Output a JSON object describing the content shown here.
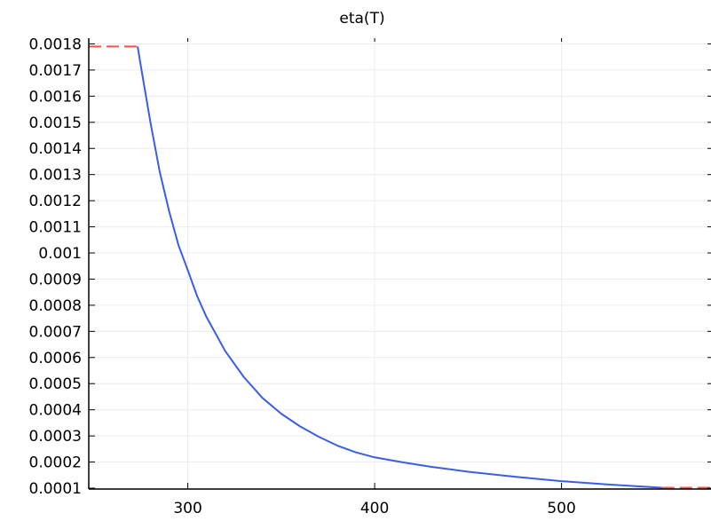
{
  "chart_data": {
    "type": "line",
    "title": "eta(T)",
    "xlabel": "",
    "ylabel": "",
    "xlim": [
      247,
      580
    ],
    "ylim": [
      9.67e-05,
      0.0018219
    ],
    "grid": true,
    "legend": "none",
    "x_ticks": [
      300,
      400,
      500
    ],
    "x_tick_labels": [
      "300",
      "400",
      "500"
    ],
    "y_ticks": [
      0.0001,
      0.0002,
      0.0003,
      0.0004,
      0.0005,
      0.0006,
      0.0007,
      0.0008,
      0.0009,
      0.001,
      0.0011,
      0.0012,
      0.0013,
      0.0014,
      0.0015,
      0.0016,
      0.0017,
      0.0018
    ],
    "y_tick_labels": [
      "0.0001",
      "0.0002",
      "0.0003",
      "0.0004",
      "0.0005",
      "0.0006",
      "0.0007",
      "0.0008",
      "0.0009",
      "0.001",
      "0.0011",
      "0.0012",
      "0.0013",
      "0.0014",
      "0.0015",
      "0.0016",
      "0.0017",
      "0.0018"
    ],
    "series": [
      {
        "color": "#3a5ee6",
        "style": "solid",
        "x": [
          273.15,
          275,
          280,
          285,
          290,
          295,
          300,
          305,
          310,
          320,
          330,
          340,
          350,
          360,
          370,
          380,
          390,
          400,
          415,
          430,
          450,
          475,
          500,
          525,
          553.75
        ],
        "y": [
          0.00179,
          0.00171,
          0.0015,
          0.00131,
          0.00116,
          0.00103,
          0.000934,
          0.000835,
          0.000755,
          0.000625,
          0.000525,
          0.000445,
          0.000385,
          0.000337,
          0.000297,
          0.000263,
          0.000237,
          0.000218,
          0.000199,
          0.000182,
          0.000163,
          0.000144,
          0.000127,
          0.000114,
          0.000102
        ]
      },
      {
        "color": "#ff4f4f",
        "style": "dashed",
        "x": [
          247,
          273.15
        ],
        "y": [
          0.00179,
          0.00179
        ]
      },
      {
        "color": "#ff4f4f",
        "style": "dashed",
        "x": [
          553.75,
          580
        ],
        "y": [
          0.000102,
          0.000102
        ]
      }
    ]
  }
}
